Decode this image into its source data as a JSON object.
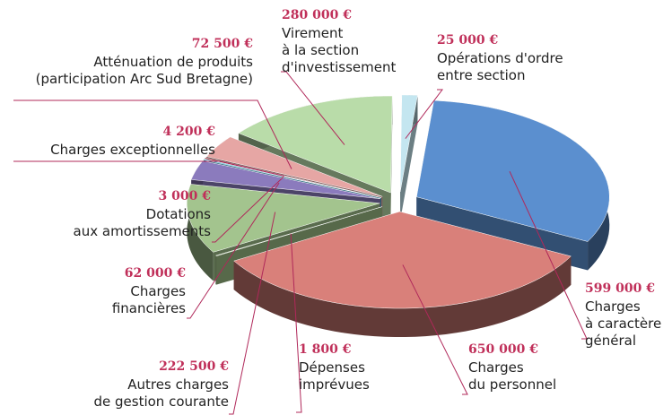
{
  "chart_data": {
    "type": "pie",
    "categories": [
      "Charges\nà caractère\ngénéral",
      "Charges\ndu personnel",
      "Dépenses\nimprévues",
      "Autres charges\nde gestion courante",
      "Charges\nfinancières",
      "Dotations\naux amortissements",
      "Charges exceptionnelles",
      "Atténuation de produits\n(participation Arc Sud Bretagne)",
      "Virement\nà la section\nd'investissement",
      "Opérations d'ordre\nentre section"
    ],
    "values": [
      599000,
      650000,
      1800,
      222500,
      62000,
      3000,
      4200,
      72500,
      280000,
      25000
    ],
    "value_labels": [
      "599 000 €",
      "650 000 €",
      "1 800 €",
      "222 500 €",
      "62 000 €",
      "3 000 €",
      "4 200 €",
      "72 500 €",
      "280 000 €",
      "25 000 €"
    ],
    "colors": [
      "#5b8fcf",
      "#d9807a",
      "#9fbf87",
      "#a3c48e",
      "#8b7bbd",
      "#3fb6d6",
      "#9a2a3a",
      "#e6a6a4",
      "#b9dca9",
      "#c4e6f0"
    ]
  }
}
